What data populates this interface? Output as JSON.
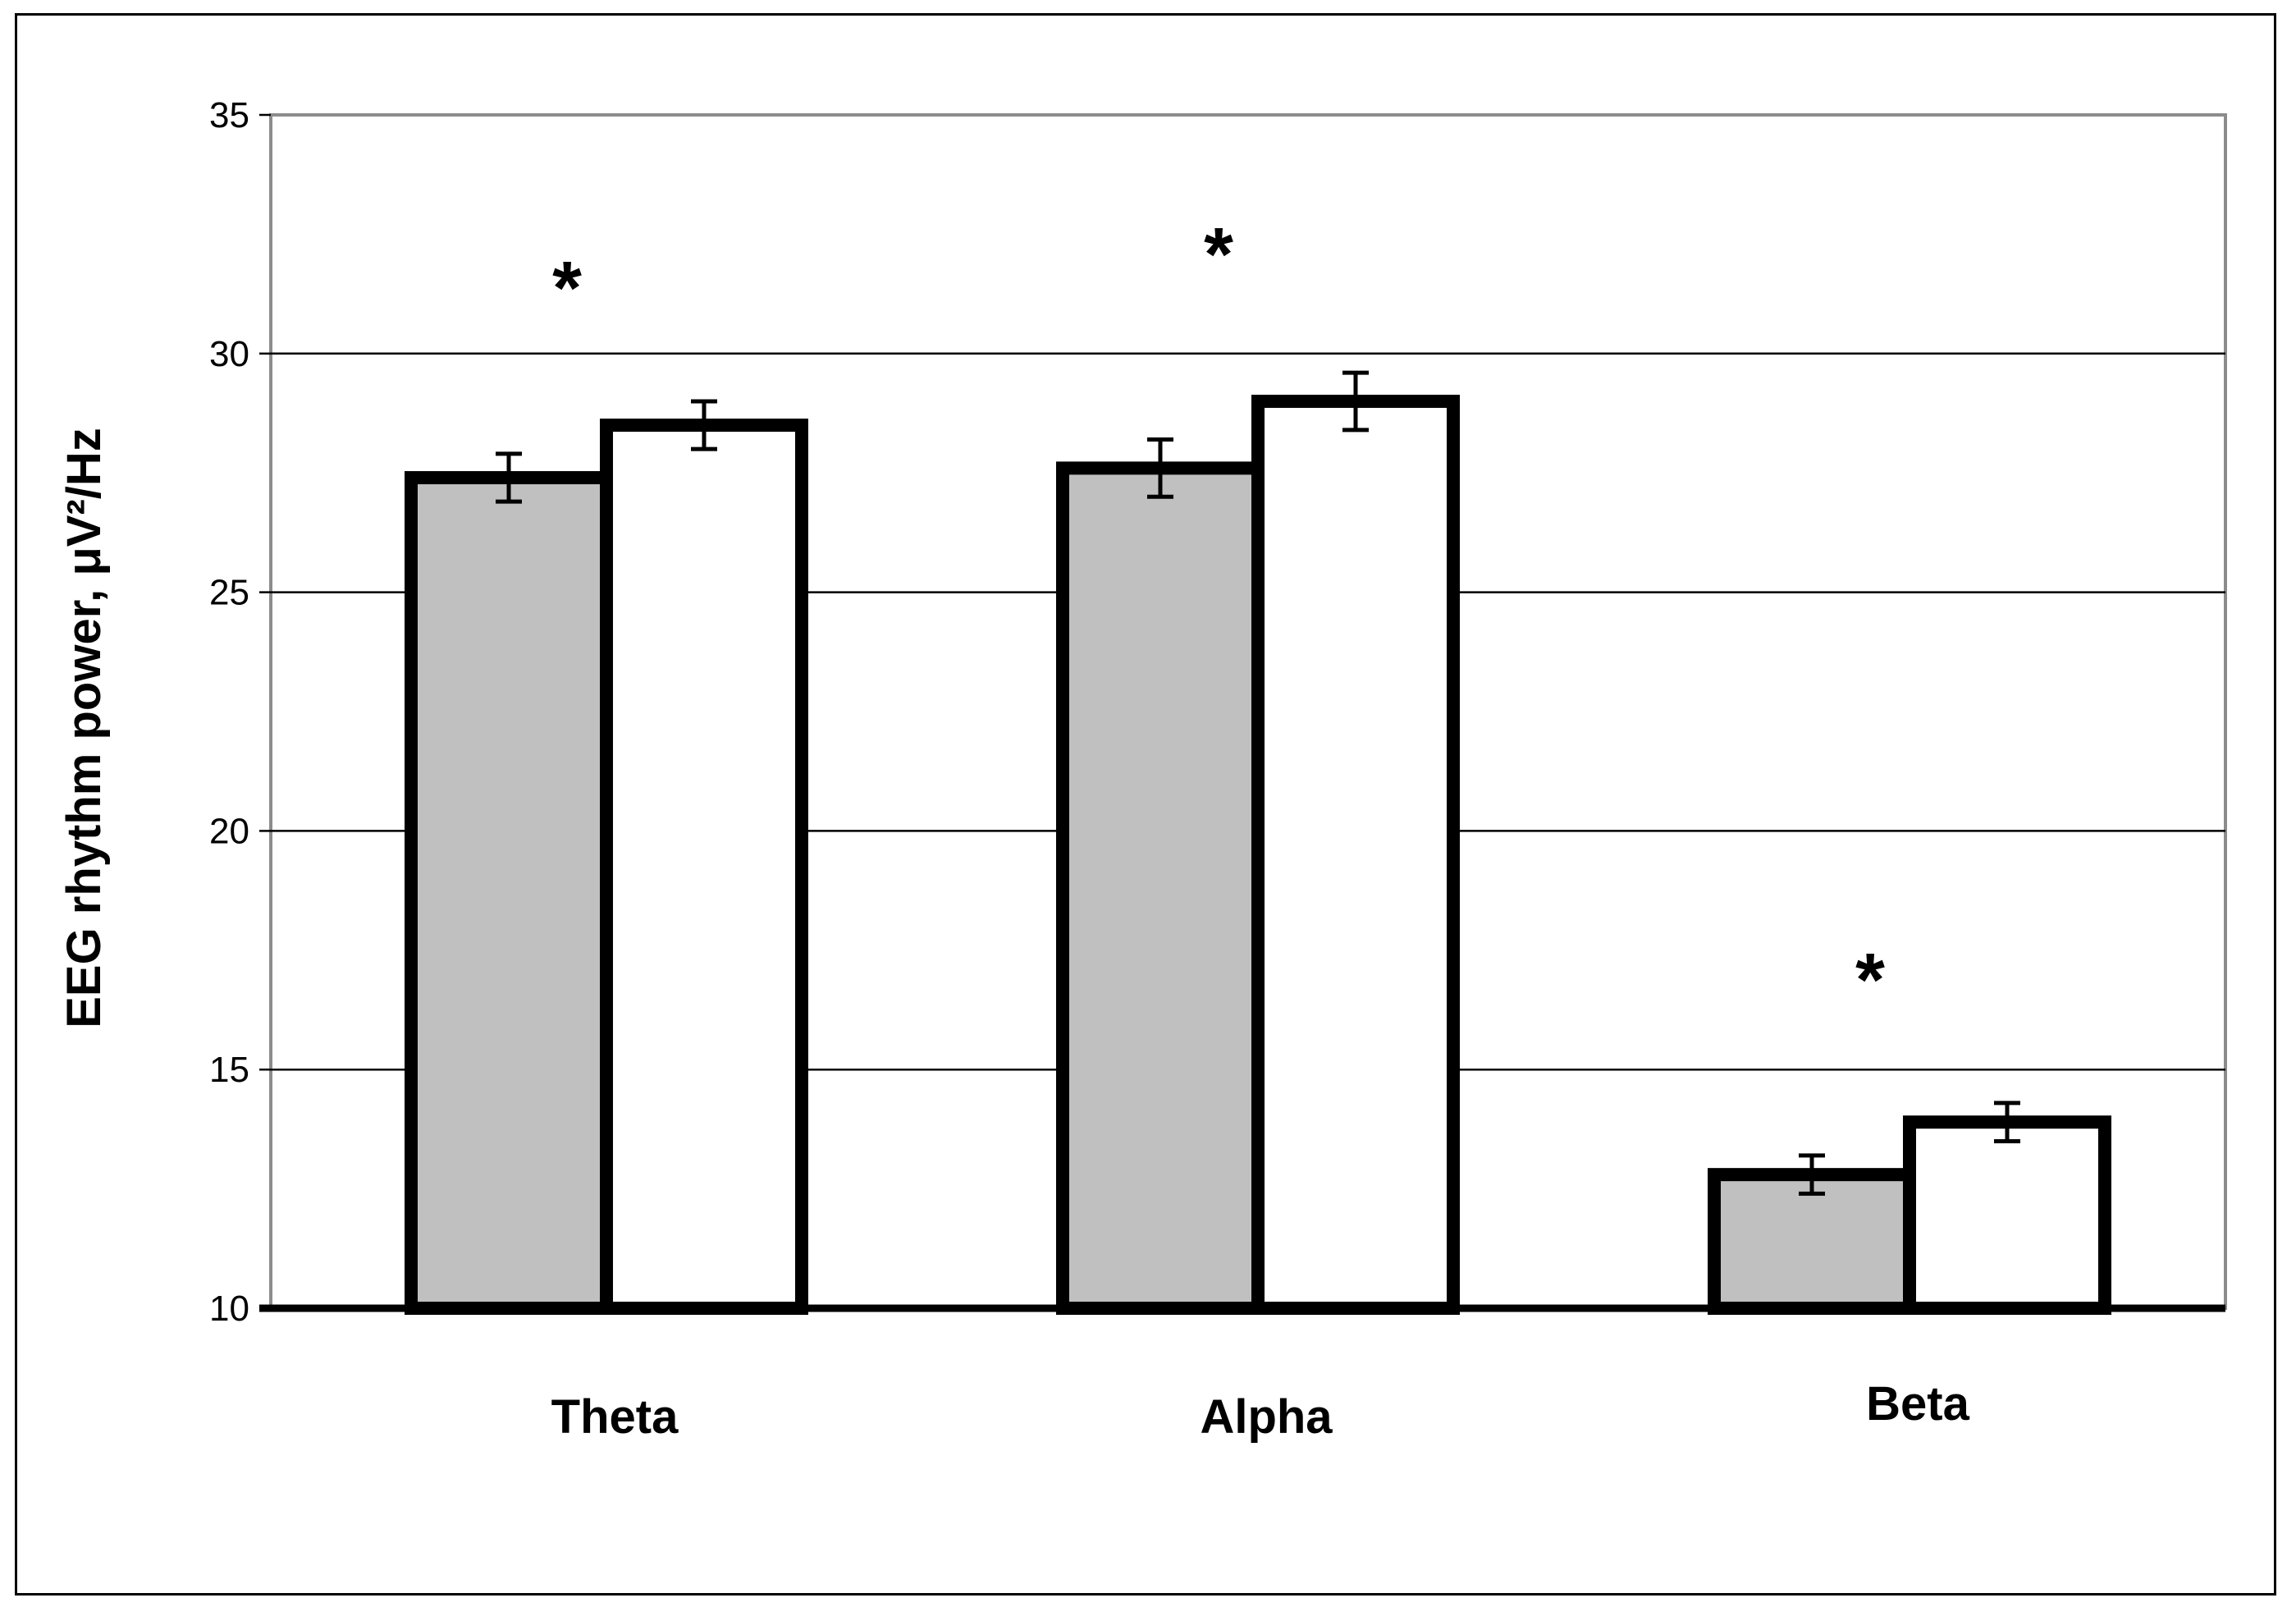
{
  "chart_data": {
    "type": "bar",
    "title": "",
    "xlabel": "",
    "ylabel": "EEG rhythm power, μV²/Hz",
    "ylim": [
      10,
      35
    ],
    "yticks": [
      10,
      15,
      20,
      25,
      30,
      35
    ],
    "grid": true,
    "legend": "none",
    "categories": [
      "Theta",
      "Alpha",
      "Beta"
    ],
    "series": [
      {
        "values": [
          27.4,
          27.6,
          12.8
        ],
        "errors": [
          0.5,
          0.6,
          0.4
        ],
        "color": "#c0c0c0"
      },
      {
        "values": [
          28.5,
          29.0,
          13.9
        ],
        "errors": [
          0.5,
          0.6,
          0.4
        ],
        "color": "#ffffff"
      }
    ],
    "annotations": [
      {
        "text": "*",
        "category": "Theta",
        "y": 31.9
      },
      {
        "text": "*",
        "category": "Alpha",
        "y": 32.6
      },
      {
        "text": "*",
        "category": "Beta",
        "y": 17.4
      }
    ]
  }
}
